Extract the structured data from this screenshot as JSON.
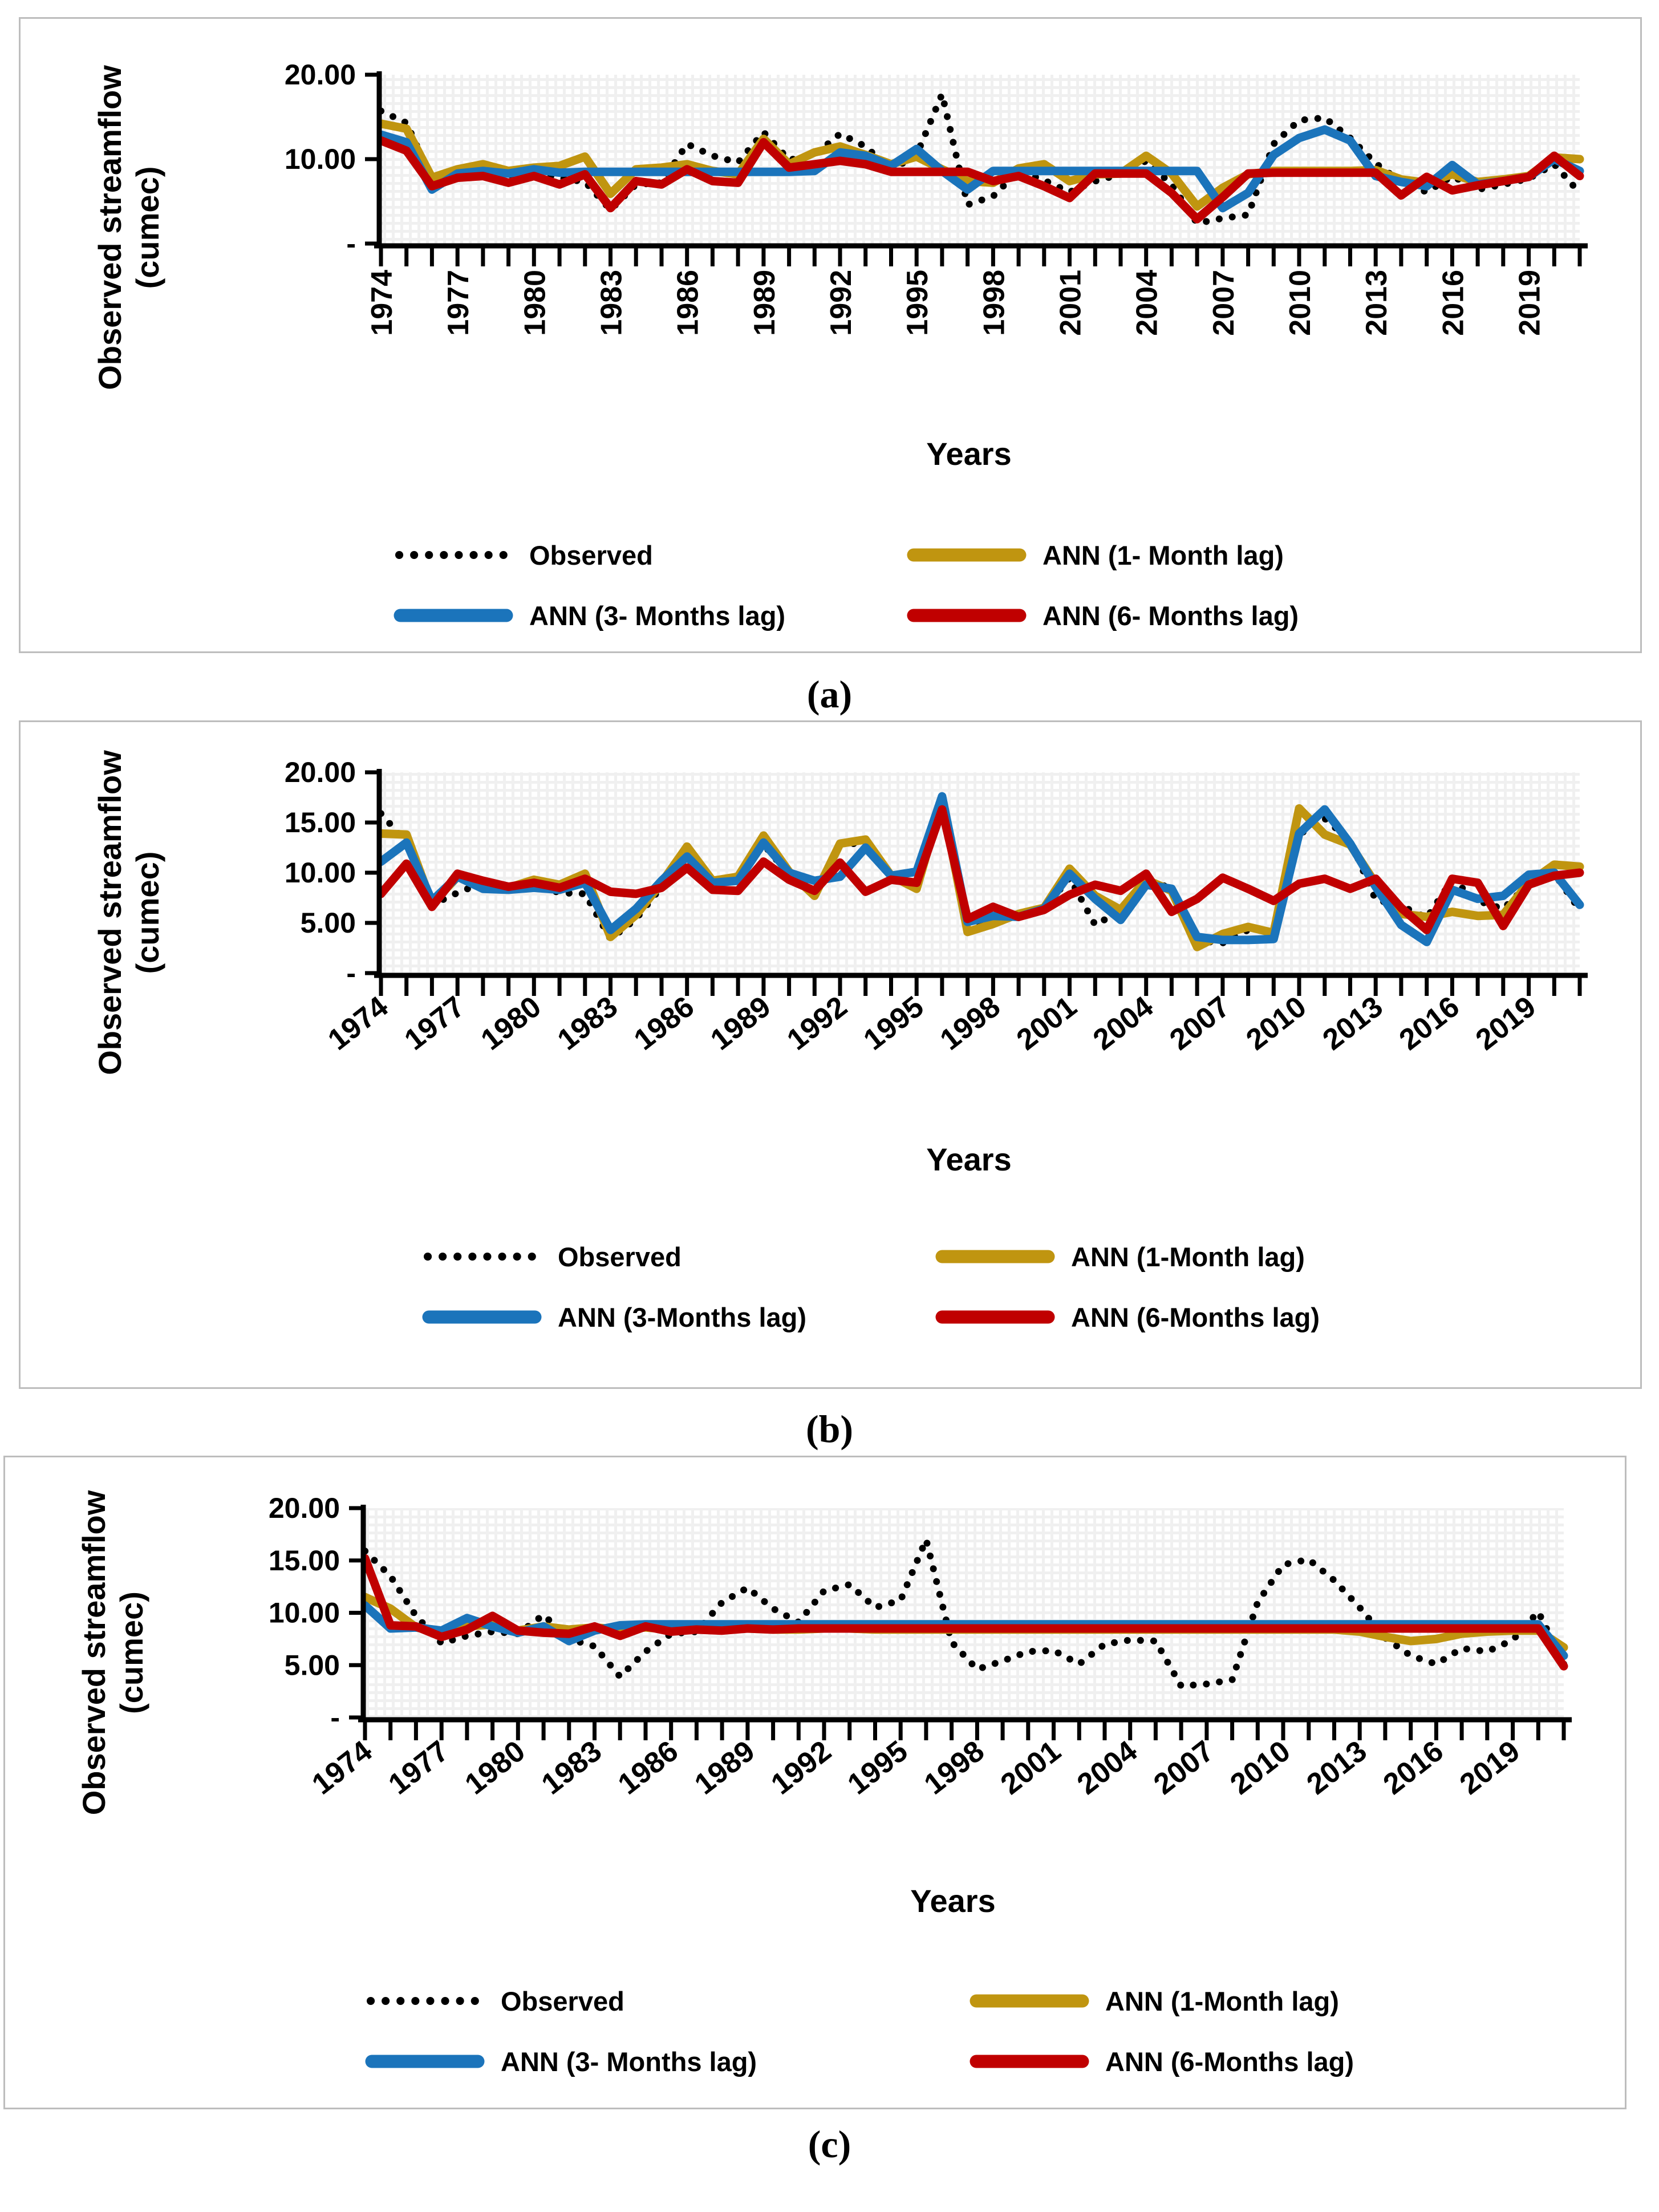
{
  "figure": {
    "description_visible_text_only": true,
    "captions": [
      "(a)",
      "(b)",
      "(c)"
    ]
  },
  "colors": {
    "observed": "#000000",
    "ann1": "#C09510",
    "ann3": "#1B74BB",
    "ann6": "#C00000",
    "axis": "#000000",
    "panel_border": "#BDBDBD",
    "mesh_background": "#F0F0F0",
    "mesh_cell": "#FFFFFF"
  },
  "chart_data": {
    "years": [
      1974,
      1975,
      1976,
      1977,
      1978,
      1979,
      1980,
      1981,
      1982,
      1983,
      1984,
      1985,
      1986,
      1987,
      1988,
      1989,
      1990,
      1991,
      1992,
      1993,
      1994,
      1995,
      1996,
      1997,
      1998,
      1999,
      2000,
      2001,
      2002,
      2003,
      2004,
      2005,
      2006,
      2007,
      2008,
      2009,
      2010,
      2011,
      2012,
      2013,
      2014,
      2015,
      2016,
      2017,
      2018,
      2019,
      2020,
      2021
    ],
    "charts": [
      {
        "id": "a",
        "type": "line",
        "caption": "(a)",
        "ylabel_lines": [
          "Observed streamflow",
          "(cumec)"
        ],
        "x_axis": {
          "title": "Years",
          "tick_label_years": [
            1974,
            1977,
            1980,
            1983,
            1986,
            1989,
            1992,
            1995,
            1998,
            2001,
            2004,
            2007,
            2010,
            2013,
            2016,
            2019
          ],
          "minor_tick_every_years": 1,
          "label_orientation": "vertical"
        },
        "y_axis": {
          "min": 0,
          "max": 20,
          "ticks": [
            {
              "value": 20,
              "label": "20.00"
            },
            {
              "value": 10,
              "label": "10.00"
            },
            {
              "value": 0,
              "label": "-"
            }
          ]
        },
        "grid": "fine-mesh",
        "legend_position": "below",
        "legend_columns": 2,
        "series": [
          {
            "name": "Observed",
            "key": "observed",
            "style": "dotted",
            "color": "#000000",
            "values": [
              15.7,
              14.3,
              7.6,
              8.0,
              8.6,
              8.0,
              8.4,
              7.8,
              7.3,
              4.0,
              7.0,
              7.2,
              11.8,
              10.4,
              9.6,
              13.2,
              9.9,
              10.5,
              13.0,
              11.5,
              8.7,
              10.5,
              17.7,
              4.6,
              5.6,
              8.6,
              7.5,
              6.1,
              7.4,
              8.2,
              9.8,
              7.0,
              2.4,
              3.0,
              3.4,
              11.8,
              14.6,
              14.9,
              12.5,
              9.5,
              7.3,
              6.1,
              8.0,
              6.4,
              7.0,
              7.7,
              9.4,
              6.0
            ]
          },
          {
            "name": "ANN (1- Month lag)",
            "key": "ann1",
            "style": "solid",
            "color": "#C09510",
            "values": [
              14.2,
              13.6,
              7.8,
              8.8,
              9.4,
              8.6,
              9.0,
              9.2,
              10.3,
              5.9,
              8.8,
              9.0,
              9.4,
              8.6,
              8.2,
              12.4,
              9.4,
              10.8,
              11.5,
              10.5,
              9.4,
              10.3,
              8.8,
              7.4,
              7.2,
              8.9,
              9.4,
              7.4,
              8.2,
              8.3,
              10.4,
              8.3,
              4.4,
              6.6,
              8.2,
              8.6,
              8.6,
              8.6,
              8.6,
              8.7,
              7.6,
              7.2,
              8.2,
              7.3,
              7.6,
              8.0,
              10.2,
              10.0
            ]
          },
          {
            "name": "ANN (3- Months lag)",
            "key": "ann3",
            "style": "solid",
            "color": "#1B74BB",
            "values": [
              12.9,
              12.0,
              6.4,
              8.3,
              8.6,
              8.3,
              8.8,
              8.4,
              8.5,
              8.5,
              8.5,
              8.5,
              8.5,
              8.5,
              8.5,
              8.5,
              8.5,
              8.6,
              10.8,
              10.4,
              9.2,
              11.2,
              8.6,
              6.4,
              8.6,
              8.6,
              8.6,
              8.6,
              8.6,
              8.6,
              8.6,
              8.6,
              8.6,
              4.2,
              6.0,
              10.5,
              12.5,
              13.5,
              12.2,
              8.0,
              7.3,
              6.8,
              9.3,
              7.0,
              7.4,
              7.9,
              10.0,
              8.6
            ]
          },
          {
            "name": "ANN (6- Months lag)",
            "key": "ann6",
            "style": "solid",
            "color": "#C00000",
            "values": [
              12.2,
              11.0,
              6.8,
              7.8,
              8.0,
              7.2,
              8.0,
              7.0,
              8.2,
              4.2,
              7.4,
              7.0,
              8.8,
              7.4,
              7.2,
              12.0,
              9.0,
              9.4,
              9.8,
              9.4,
              8.5,
              8.5,
              8.5,
              8.5,
              7.4,
              8.0,
              6.8,
              5.4,
              8.3,
              8.3,
              8.3,
              6.0,
              2.9,
              5.5,
              8.3,
              8.4,
              8.4,
              8.4,
              8.4,
              8.4,
              5.7,
              7.9,
              6.3,
              6.9,
              7.4,
              7.9,
              10.4,
              8.0
            ]
          }
        ]
      },
      {
        "id": "b",
        "type": "line",
        "caption": "(b)",
        "ylabel_lines": [
          "Observed streamflow",
          "(cumec)"
        ],
        "x_axis": {
          "title": "Years",
          "tick_label_years": [
            1974,
            1977,
            1980,
            1983,
            1986,
            1989,
            1992,
            1995,
            1998,
            2001,
            2004,
            2007,
            2010,
            2013,
            2016,
            2019
          ],
          "minor_tick_every_years": 1,
          "label_orientation": "diagonal"
        },
        "y_axis": {
          "min": 0,
          "max": 20,
          "ticks": [
            {
              "value": 20,
              "label": "20.00"
            },
            {
              "value": 15,
              "label": "15.00"
            },
            {
              "value": 10,
              "label": "10.00"
            },
            {
              "value": 5,
              "label": "5.00"
            },
            {
              "value": 0,
              "label": "-"
            }
          ]
        },
        "grid": "fine-mesh",
        "legend_position": "below",
        "legend_columns": 2,
        "series": [
          {
            "name": "Observed",
            "key": "observed",
            "style": "dotted",
            "color": "#000000",
            "values": [
              15.9,
              13.0,
              6.8,
              8.0,
              9.0,
              8.3,
              8.8,
              8.0,
              7.9,
              3.4,
              5.4,
              8.6,
              11.4,
              9.0,
              9.3,
              12.8,
              9.8,
              8.1,
              12.9,
              12.9,
              9.6,
              10.2,
              17.4,
              4.4,
              5.6,
              5.6,
              6.4,
              9.5,
              4.8,
              6.2,
              9.4,
              8.4,
              3.2,
              3.0,
              4.3,
              4.2,
              13.8,
              15.4,
              13.2,
              7.3,
              6.7,
              5.5,
              9.3,
              7.2,
              6.4,
              8.9,
              9.9,
              6.3
            ]
          },
          {
            "name": "ANN (1-Month lag)",
            "key": "ann1",
            "style": "solid",
            "color": "#C09510",
            "values": [
              13.9,
              13.8,
              6.9,
              9.6,
              8.6,
              8.5,
              9.3,
              8.8,
              9.9,
              3.6,
              5.8,
              9.0,
              12.6,
              9.2,
              9.6,
              13.7,
              10.1,
              7.7,
              12.9,
              13.3,
              9.7,
              8.4,
              17.2,
              4.1,
              4.9,
              5.9,
              6.5,
              10.4,
              7.7,
              6.3,
              9.3,
              8.2,
              2.6,
              3.9,
              4.6,
              4.0,
              16.4,
              13.8,
              12.8,
              8.9,
              5.9,
              5.6,
              6.1,
              5.7,
              5.8,
              9.0,
              10.8,
              10.6
            ]
          },
          {
            "name": "ANN (3-Months lag)",
            "key": "ann3",
            "style": "solid",
            "color": "#1B74BB",
            "values": [
              11.1,
              13.0,
              7.2,
              9.6,
              8.4,
              8.3,
              8.5,
              8.3,
              9.0,
              4.3,
              6.4,
              9.2,
              11.6,
              9.0,
              9.2,
              13.0,
              10.0,
              9.2,
              9.6,
              12.5,
              9.7,
              10.1,
              17.6,
              5.1,
              5.7,
              5.6,
              6.4,
              9.9,
              7.4,
              5.3,
              8.8,
              8.4,
              3.6,
              3.3,
              3.3,
              3.4,
              13.9,
              16.3,
              12.9,
              8.6,
              4.8,
              3.1,
              8.3,
              7.4,
              7.7,
              9.8,
              10.0,
              6.8
            ]
          },
          {
            "name": "ANN (6-Months lag)",
            "key": "ann6",
            "style": "solid",
            "color": "#C00000",
            "values": [
              7.9,
              10.9,
              6.6,
              9.9,
              9.2,
              8.6,
              9.0,
              8.5,
              9.4,
              8.1,
              7.9,
              8.5,
              10.5,
              8.3,
              8.2,
              11.1,
              9.3,
              8.2,
              11.0,
              8.1,
              9.3,
              9.0,
              16.3,
              5.4,
              6.6,
              5.6,
              6.3,
              7.8,
              8.8,
              8.2,
              9.9,
              6.1,
              7.4,
              9.5,
              8.4,
              7.2,
              8.9,
              9.4,
              8.4,
              9.4,
              6.5,
              4.3,
              9.4,
              9.0,
              4.7,
              8.8,
              9.7,
              10.0
            ]
          }
        ]
      },
      {
        "id": "c",
        "type": "line",
        "caption": "(c)",
        "ylabel_lines": [
          "Observed streamflow",
          "(cumec)"
        ],
        "x_axis": {
          "title": "Years",
          "tick_label_years": [
            1974,
            1977,
            1980,
            1983,
            1986,
            1989,
            1992,
            1995,
            1998,
            2001,
            2004,
            2007,
            2010,
            2013,
            2016,
            2019
          ],
          "minor_tick_every_years": 1,
          "label_orientation": "diagonal"
        },
        "y_axis": {
          "min": 0,
          "max": 20,
          "ticks": [
            {
              "value": 20,
              "label": "20.00"
            },
            {
              "value": 15,
              "label": "15.00"
            },
            {
              "value": 10,
              "label": "10.00"
            },
            {
              "value": 5,
              "label": "5.00"
            },
            {
              "value": 0,
              "label": "-"
            }
          ]
        },
        "grid": "fine-mesh",
        "legend_position": "below",
        "legend_columns": 2,
        "series": [
          {
            "name": "Observed",
            "key": "observed",
            "style": "dotted",
            "color": "#000000",
            "values": [
              15.9,
              13.5,
              9.7,
              7.1,
              7.8,
              8.2,
              8.0,
              9.8,
              7.5,
              6.8,
              3.9,
              6.3,
              8.0,
              8.2,
              11.0,
              12.4,
              10.4,
              9.1,
              12.1,
              12.7,
              10.5,
              11.2,
              17.0,
              7.2,
              4.6,
              5.4,
              6.3,
              6.4,
              5.1,
              7.0,
              7.4,
              7.3,
              3.0,
              3.2,
              3.6,
              11.0,
              14.6,
              15.1,
              13.1,
              10.5,
              7.6,
              5.9,
              5.1,
              6.6,
              6.3,
              7.4,
              10.1,
              5.1
            ]
          },
          {
            "name": "ANN (1-Month lag)",
            "key": "ann1",
            "style": "solid",
            "color": "#C09510",
            "values": [
              11.5,
              10.4,
              8.6,
              8.2,
              8.7,
              8.9,
              8.3,
              8.7,
              8.4,
              8.6,
              8.4,
              8.6,
              8.4,
              8.5,
              8.6,
              8.5,
              8.4,
              8.4,
              8.5,
              8.5,
              8.4,
              8.4,
              8.4,
              8.4,
              8.4,
              8.4,
              8.4,
              8.4,
              8.4,
              8.4,
              8.4,
              8.4,
              8.4,
              8.4,
              8.4,
              8.4,
              8.4,
              8.4,
              8.4,
              8.2,
              7.7,
              7.3,
              7.5,
              8.0,
              8.2,
              8.3,
              8.3,
              6.7
            ]
          },
          {
            "name": "ANN (3- Months lag)",
            "key": "ann3",
            "style": "solid",
            "color": "#1B74BB",
            "values": [
              10.7,
              8.5,
              8.6,
              8.3,
              9.5,
              8.7,
              8.1,
              8.7,
              7.3,
              8.3,
              8.8,
              8.9,
              8.9,
              8.9,
              8.9,
              8.9,
              8.9,
              8.9,
              8.9,
              8.9,
              8.9,
              8.9,
              8.9,
              8.9,
              8.9,
              8.9,
              8.9,
              8.9,
              8.9,
              8.9,
              8.9,
              8.9,
              8.9,
              8.9,
              8.9,
              8.9,
              8.9,
              8.9,
              8.9,
              8.9,
              8.9,
              8.9,
              8.9,
              8.9,
              8.9,
              8.9,
              8.9,
              5.9
            ]
          },
          {
            "name": "ANN (6-Months lag)",
            "key": "ann6",
            "style": "solid",
            "color": "#C00000",
            "values": [
              15.2,
              8.8,
              8.7,
              7.7,
              8.4,
              9.7,
              8.3,
              8.1,
              8.0,
              8.7,
              7.8,
              8.7,
              8.2,
              8.4,
              8.3,
              8.5,
              8.4,
              8.5,
              8.5,
              8.5,
              8.5,
              8.5,
              8.5,
              8.5,
              8.5,
              8.5,
              8.5,
              8.5,
              8.5,
              8.5,
              8.5,
              8.5,
              8.5,
              8.5,
              8.5,
              8.5,
              8.5,
              8.5,
              8.5,
              8.5,
              8.5,
              8.5,
              8.5,
              8.5,
              8.5,
              8.5,
              8.5,
              4.9
            ]
          }
        ]
      }
    ]
  }
}
